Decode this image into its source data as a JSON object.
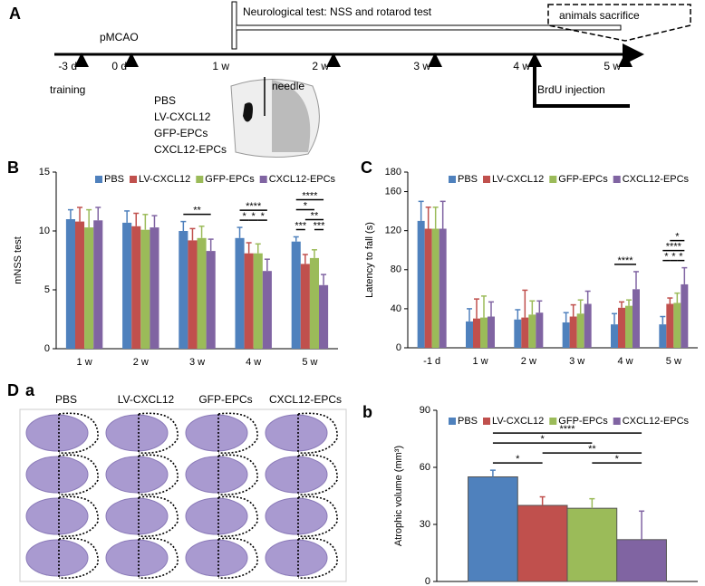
{
  "timeline": {
    "label": "A",
    "event": "pMCAO",
    "test": "Neurological test: NSS and rotarod test",
    "sacrifice": "animals sacrifice",
    "times": [
      "-3 d",
      "0 d",
      "1 w",
      "2 w",
      "3 w",
      "4 w",
      "5 w"
    ],
    "training": "training",
    "needle": "needle",
    "brdu": "BrdU  injection",
    "groups": [
      "PBS",
      "LV-CXCL12",
      "GFP-EPCs",
      "CXCL12-EPCs"
    ]
  },
  "histology": {
    "label": "D",
    "sublabel": "a",
    "columns": [
      "PBS",
      "LV-CXCL12",
      "GFP-EPCs",
      "CXCL12-EPCs"
    ]
  },
  "chart_data": [
    {
      "type": "bar",
      "label": "B",
      "ylabel": "mNSS test",
      "categories": [
        "1 w",
        "2 w",
        "3 w",
        "4 w",
        "5 w"
      ],
      "ylim": [
        0,
        15
      ],
      "yticks": [
        0,
        5,
        10,
        15
      ],
      "series": [
        {
          "name": "PBS",
          "color": "#4f81bd",
          "values": [
            11.0,
            10.7,
            10.0,
            9.4,
            9.1
          ],
          "errors": [
            0.8,
            1.0,
            0.8,
            0.9,
            0.4
          ]
        },
        {
          "name": "LV-CXCL12",
          "color": "#c0504d",
          "values": [
            10.8,
            10.4,
            9.2,
            8.1,
            7.2
          ],
          "errors": [
            1.2,
            1.1,
            1.0,
            0.9,
            0.8
          ]
        },
        {
          "name": "GFP-EPCs",
          "color": "#9bbb59",
          "values": [
            10.3,
            10.1,
            9.4,
            8.1,
            7.7
          ],
          "errors": [
            1.5,
            1.3,
            1.0,
            0.8,
            0.7
          ]
        },
        {
          "name": "CXCL12-EPCs",
          "color": "#8064a2",
          "values": [
            10.9,
            10.3,
            8.3,
            6.6,
            5.4
          ],
          "errors": [
            1.1,
            1.0,
            1.0,
            1.0,
            0.9
          ]
        }
      ],
      "annotations": [
        {
          "text": "**",
          "category": 2,
          "from": 0,
          "to": 3
        },
        {
          "text": "*",
          "category": 3,
          "from": 0,
          "to": 1
        },
        {
          "text": "*",
          "category": 3,
          "from": 1,
          "to": 2
        },
        {
          "text": "*",
          "category": 3,
          "from": 2,
          "to": 3
        },
        {
          "text": "****",
          "category": 3,
          "from": 0,
          "to": 3
        },
        {
          "text": "***",
          "category": 4,
          "from": 0,
          "to": 1
        },
        {
          "text": "***",
          "category": 4,
          "from": 2,
          "to": 3
        },
        {
          "text": "**",
          "category": 4,
          "from": 1,
          "to": 3
        },
        {
          "text": "*",
          "category": 4,
          "from": 0,
          "to": 2
        },
        {
          "text": "****",
          "category": 4,
          "from": 0,
          "to": 3
        }
      ]
    },
    {
      "type": "bar",
      "label": "C",
      "ylabel": "Latency to fall (s)",
      "categories": [
        "-1 d",
        "1 w",
        "2 w",
        "3 w",
        "4 w",
        "5 w"
      ],
      "ylim": [
        0,
        180
      ],
      "yticks": [
        0,
        40,
        80,
        120,
        160,
        180
      ],
      "series": [
        {
          "name": "PBS",
          "color": "#4f81bd",
          "values": [
            130,
            27,
            29,
            26,
            24,
            24
          ],
          "errors": [
            20,
            13,
            10,
            10,
            11,
            8
          ]
        },
        {
          "name": "LV-CXCL12",
          "color": "#c0504d",
          "values": [
            122,
            30,
            31,
            32,
            41,
            45
          ],
          "errors": [
            22,
            20,
            28,
            12,
            6,
            6
          ]
        },
        {
          "name": "GFP-EPCs",
          "color": "#9bbb59",
          "values": [
            122,
            31,
            34,
            35,
            43,
            46
          ],
          "errors": [
            22,
            22,
            14,
            14,
            6,
            10
          ]
        },
        {
          "name": "CXCL12-EPCs",
          "color": "#8064a2",
          "values": [
            122,
            32,
            36,
            45,
            60,
            65
          ],
          "errors": [
            28,
            15,
            12,
            13,
            18,
            17
          ]
        }
      ],
      "annotations": [
        {
          "text": "****",
          "category": 4,
          "from": 0,
          "to": 3
        },
        {
          "text": "*",
          "category": 5,
          "from": 0,
          "to": 1
        },
        {
          "text": "*",
          "category": 5,
          "from": 1,
          "to": 2
        },
        {
          "text": "****",
          "category": 5,
          "from": 0,
          "to": 3
        },
        {
          "text": "*",
          "category": 5,
          "from": 1,
          "to": 3
        },
        {
          "text": "*",
          "category": 5,
          "from": 2,
          "to": 3
        }
      ]
    },
    {
      "type": "bar",
      "label": "b",
      "ylabel": "Atrophic volume (mm³)",
      "categories": [
        null
      ],
      "ylim": [
        0,
        90
      ],
      "yticks": [
        0,
        30,
        60,
        90
      ],
      "series": [
        {
          "name": "PBS",
          "color": "#4f81bd",
          "values": [
            55
          ],
          "errors": [
            3.5
          ]
        },
        {
          "name": "LV-CXCL12",
          "color": "#c0504d",
          "values": [
            40
          ],
          "errors": [
            4.5
          ]
        },
        {
          "name": "GFP-EPCs",
          "color": "#9bbb59",
          "values": [
            38.5
          ],
          "errors": [
            5
          ]
        },
        {
          "name": "CXCL12-EPCs",
          "color": "#8064a2",
          "values": [
            22
          ],
          "errors": [
            15
          ]
        }
      ],
      "annotations": [
        {
          "text": "*",
          "category": 0,
          "from": 0,
          "to": 1
        },
        {
          "text": "*",
          "category": 0,
          "from": 2,
          "to": 3
        },
        {
          "text": "**",
          "category": 0,
          "from": 1,
          "to": 3
        },
        {
          "text": "*",
          "category": 0,
          "from": 0,
          "to": 2
        },
        {
          "text": "****",
          "category": 0,
          "from": 0,
          "to": 3
        }
      ]
    }
  ]
}
